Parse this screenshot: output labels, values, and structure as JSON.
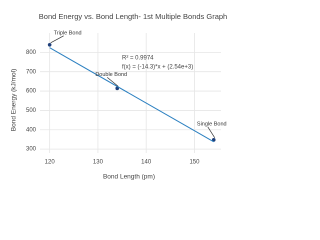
{
  "chart_data": {
    "type": "scatter",
    "title": "Bond Energy vs. Bond Length- 1st Multiple Bonds Graph",
    "x_label": "Bond Length (pm)",
    "y_label": "Bond Energy (kJ/mol)",
    "series": [
      {
        "x": [
          120,
          134,
          154
        ],
        "values": [
          839,
          614,
          348
        ],
        "color": "#1f3f7a",
        "mode": "markers"
      },
      {
        "x": [
          120,
          154
        ],
        "values": [
          824,
          338
        ],
        "color": "#2a7fc0",
        "mode": "line"
      }
    ],
    "annotations": [
      "Triple Bond",
      "Double Bond",
      "Single Bond",
      "R² = 0.9974",
      "f(x) = (-14.3)*x + (2.54e+3)"
    ],
    "xlim": [
      118,
      155.5
    ],
    "xticks": [
      120,
      130,
      140,
      150
    ],
    "ylim": [
      280,
      900
    ],
    "yticks": [
      300,
      400,
      500,
      600,
      700,
      800
    ],
    "grid": true
  }
}
